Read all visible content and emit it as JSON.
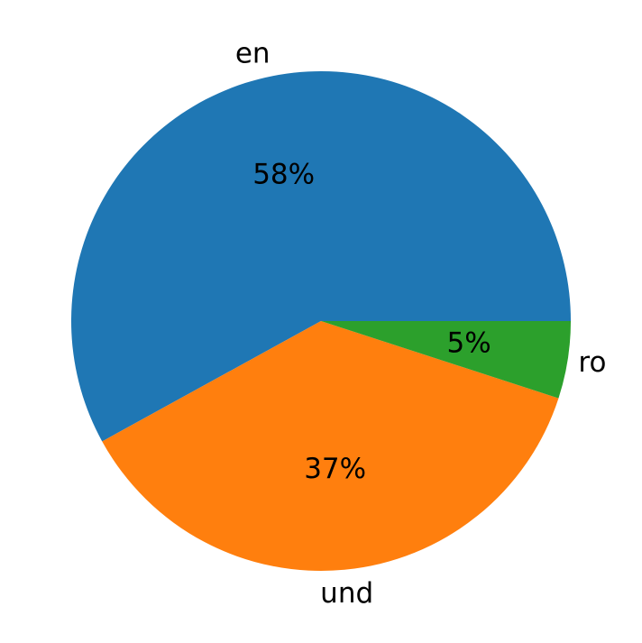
{
  "chart_data": {
    "type": "pie",
    "categories": [
      "en",
      "und",
      "ro"
    ],
    "values": [
      58,
      37,
      5
    ],
    "value_labels": [
      "58%",
      "37%",
      "5%"
    ],
    "colors": [
      "#1f77b4",
      "#ff7f0e",
      "#2ca02c"
    ]
  }
}
